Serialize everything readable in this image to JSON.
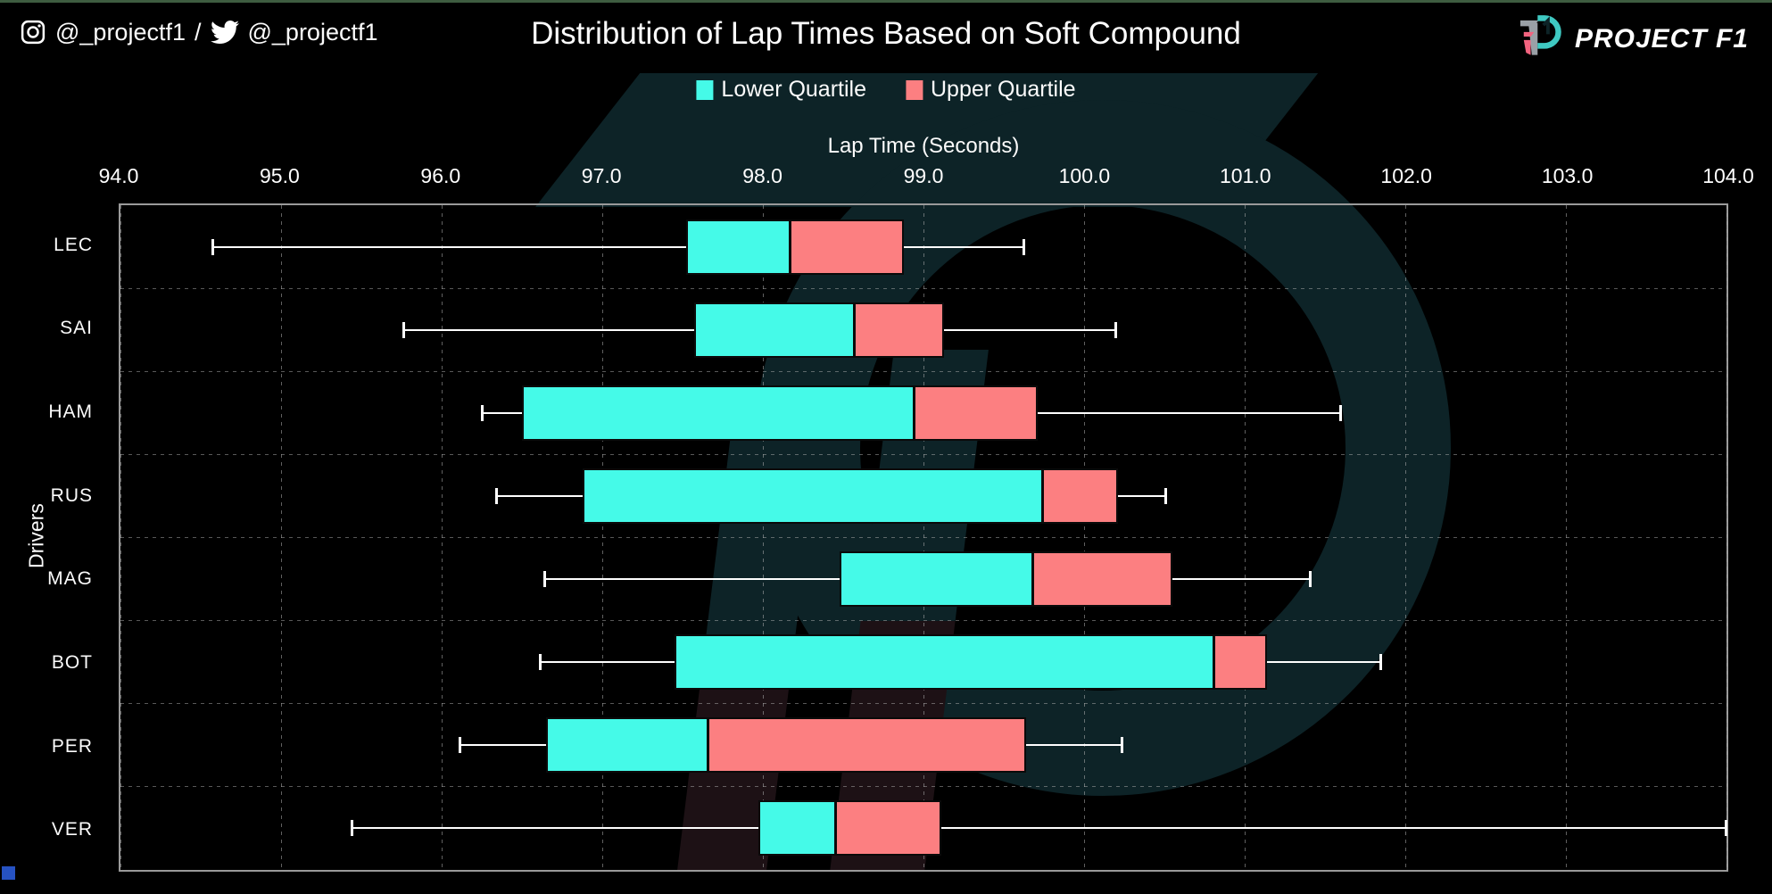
{
  "page": {
    "background": "#000000",
    "top_bar_color": "#3e5c40"
  },
  "header": {
    "instagram_handle": "@_projectf1",
    "separator": "/",
    "twitter_handle": "@_projectf1",
    "title": "Distribution of Lap Times Based on Soft Compound",
    "logo_text": "PROJECT F1"
  },
  "legend": {
    "items": [
      {
        "label": "Lower Quartile",
        "color": "#45fae8"
      },
      {
        "label": "Upper Quartile",
        "color": "#fc7f81"
      }
    ]
  },
  "chart_data": {
    "type": "boxplot-horizontal",
    "title": "Distribution of Lap Times Based on Soft Compound",
    "xlabel": "Lap Time (Seconds)",
    "ylabel": "Drivers",
    "xlim": [
      94.0,
      104.0
    ],
    "xticks": [
      94.0,
      95.0,
      96.0,
      97.0,
      98.0,
      99.0,
      100.0,
      101.0,
      102.0,
      103.0,
      104.0
    ],
    "grid": true,
    "legend_position": "top-center",
    "colors": {
      "lower_quartile": "#45fae8",
      "upper_quartile": "#fc7f81",
      "whisker": "#ffffff",
      "median": "#0a0a0a"
    },
    "categories": [
      "LEC",
      "SAI",
      "HAM",
      "RUS",
      "MAG",
      "BOT",
      "PER",
      "VER"
    ],
    "rows": [
      {
        "driver": "LEC",
        "min": 94.57,
        "q1": 97.52,
        "median": 98.17,
        "q3": 98.88,
        "max": 99.63
      },
      {
        "driver": "SAI",
        "min": 95.76,
        "q1": 97.57,
        "median": 98.57,
        "q3": 99.13,
        "max": 100.2
      },
      {
        "driver": "HAM",
        "min": 96.25,
        "q1": 96.5,
        "median": 98.94,
        "q3": 99.71,
        "max": 101.6
      },
      {
        "driver": "RUS",
        "min": 96.34,
        "q1": 96.88,
        "median": 99.74,
        "q3": 100.21,
        "max": 100.51
      },
      {
        "driver": "MAG",
        "min": 96.64,
        "q1": 98.48,
        "median": 99.68,
        "q3": 100.55,
        "max": 101.41
      },
      {
        "driver": "BOT",
        "min": 96.61,
        "q1": 97.45,
        "median": 100.81,
        "q3": 101.14,
        "max": 101.85
      },
      {
        "driver": "PER",
        "min": 96.11,
        "q1": 96.65,
        "median": 97.66,
        "q3": 99.64,
        "max": 100.24
      },
      {
        "driver": "VER",
        "min": 95.44,
        "q1": 97.97,
        "median": 98.45,
        "q3": 99.11,
        "max": 104.0
      }
    ]
  }
}
